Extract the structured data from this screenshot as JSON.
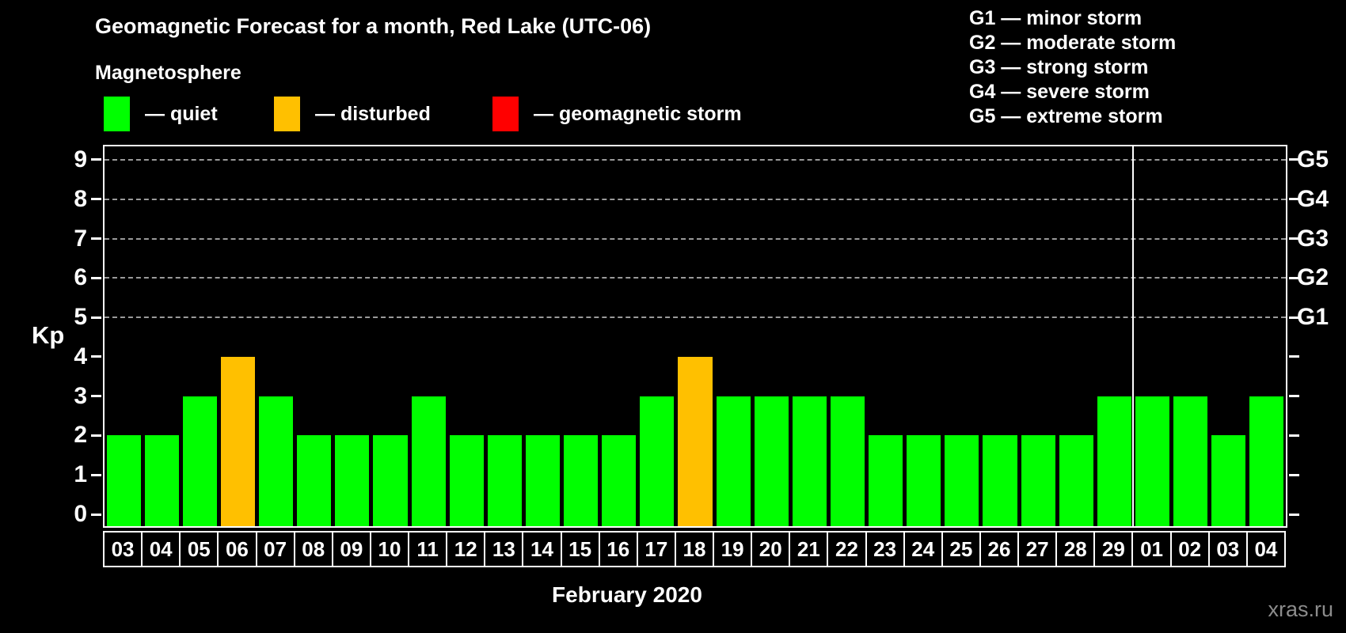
{
  "header": {
    "title": "Geomagnetic Forecast for a month, Red Lake (UTC-06)",
    "subtitle": "Magnetosphere"
  },
  "legend": {
    "items": [
      {
        "name": "quiet",
        "label": "— quiet",
        "color": "#00ff00"
      },
      {
        "name": "disturbed",
        "label": "— disturbed",
        "color": "#ffc000"
      },
      {
        "name": "storm",
        "label": "— geomagnetic storm",
        "color": "#ff0000"
      }
    ]
  },
  "g_legend": {
    "items": [
      "G1 — minor storm",
      "G2 — moderate storm",
      "G3 — strong storm",
      "G4 — severe storm",
      "G5 — extreme storm"
    ]
  },
  "axes": {
    "y_title": "Kp",
    "x_title": "February 2020"
  },
  "watermark": "xras.ru",
  "chart_data": {
    "type": "bar",
    "title": "Geomagnetic Forecast for a month, Red Lake (UTC-06)",
    "subtitle": "Magnetosphere",
    "xlabel": "February 2020",
    "ylabel": "Kp",
    "ylim": [
      0,
      9
    ],
    "grid": "horizontal dashed lines at Kp 5-9 (G1-G5 levels)",
    "legend_position": "top",
    "yticks": [
      0,
      1,
      2,
      3,
      4,
      5,
      6,
      7,
      8,
      9
    ],
    "right_axis": {
      "labels": [
        "G1",
        "G2",
        "G3",
        "G4",
        "G5"
      ],
      "kp_positions": [
        5,
        6,
        7,
        8,
        9
      ]
    },
    "categories": [
      "03",
      "04",
      "05",
      "06",
      "07",
      "08",
      "09",
      "10",
      "11",
      "12",
      "13",
      "14",
      "15",
      "16",
      "17",
      "18",
      "19",
      "20",
      "21",
      "22",
      "23",
      "24",
      "25",
      "26",
      "27",
      "28",
      "29",
      "01",
      "02",
      "03",
      "04"
    ],
    "values": [
      2,
      2,
      3,
      4,
      3,
      2,
      2,
      2,
      3,
      2,
      2,
      2,
      2,
      2,
      3,
      4,
      3,
      3,
      3,
      3,
      2,
      2,
      2,
      2,
      2,
      2,
      3,
      3,
      3,
      2,
      3
    ],
    "statuses": [
      "quiet",
      "quiet",
      "quiet",
      "disturbed",
      "quiet",
      "quiet",
      "quiet",
      "quiet",
      "quiet",
      "quiet",
      "quiet",
      "quiet",
      "quiet",
      "quiet",
      "quiet",
      "disturbed",
      "quiet",
      "quiet",
      "quiet",
      "quiet",
      "quiet",
      "quiet",
      "quiet",
      "quiet",
      "quiet",
      "quiet",
      "quiet",
      "quiet",
      "quiet",
      "quiet",
      "quiet"
    ],
    "colors": {
      "quiet": "#00ff00",
      "disturbed": "#ffc000",
      "storm": "#ff0000"
    },
    "month_separator_index": 27
  }
}
